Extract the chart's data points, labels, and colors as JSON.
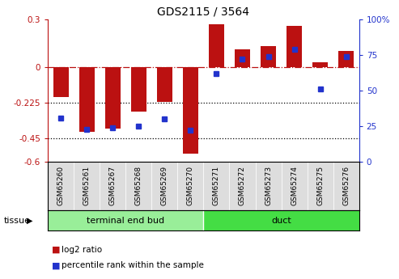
{
  "title": "GDS2115 / 3564",
  "samples": [
    "GSM65260",
    "GSM65261",
    "GSM65267",
    "GSM65268",
    "GSM65269",
    "GSM65270",
    "GSM65271",
    "GSM65272",
    "GSM65273",
    "GSM65274",
    "GSM65275",
    "GSM65276"
  ],
  "log2_ratio": [
    -0.19,
    -0.41,
    -0.39,
    -0.28,
    -0.22,
    -0.55,
    0.27,
    0.11,
    0.13,
    0.26,
    0.03,
    0.1
  ],
  "percentile_rank": [
    31,
    23,
    24,
    25,
    30,
    22,
    62,
    72,
    74,
    79,
    51,
    74
  ],
  "bar_color": "#bb1111",
  "dot_color": "#2233cc",
  "ylim_left": [
    -0.6,
    0.3
  ],
  "ylim_right": [
    0,
    100
  ],
  "yticks_left": [
    -0.6,
    -0.45,
    -0.225,
    0.0,
    0.3
  ],
  "ytick_labels_left": [
    "-0.6",
    "-0.45",
    "-0.225",
    "0",
    "0.3"
  ],
  "yticks_right": [
    0,
    25,
    50,
    75,
    100
  ],
  "ytick_labels_right": [
    "0",
    "25",
    "50",
    "75",
    "100%"
  ],
  "dotted_lines": [
    -0.225,
    -0.45
  ],
  "tissue_groups": [
    {
      "label": "terminal end bud",
      "start": 0,
      "end": 6,
      "color": "#99ee99"
    },
    {
      "label": "duct",
      "start": 6,
      "end": 12,
      "color": "#44dd44"
    }
  ],
  "legend_items": [
    {
      "label": "log2 ratio",
      "color": "#bb1111"
    },
    {
      "label": "percentile rank within the sample",
      "color": "#2233cc"
    }
  ],
  "tissue_label": "tissue",
  "background_color": "#ffffff",
  "bar_width": 0.6
}
